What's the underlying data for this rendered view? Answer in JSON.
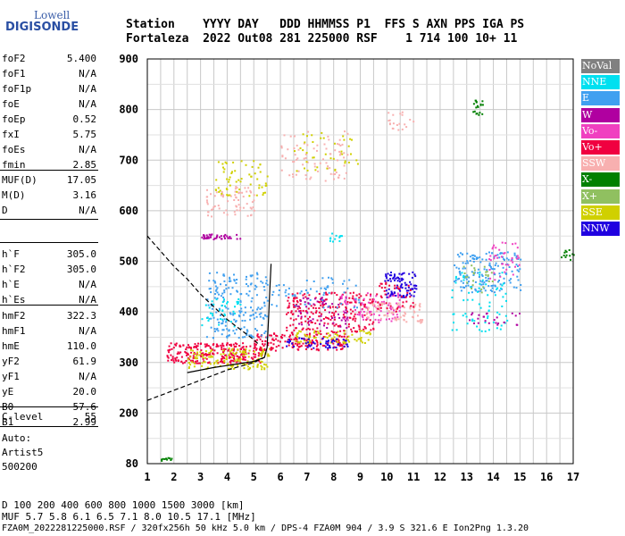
{
  "logo": {
    "top": "Lowell",
    "main": "DIGISONDE",
    "color": "#2a4fa3"
  },
  "header": {
    "row1": "Station    YYYY DAY   DDD HHMMSS P1  FFS S AXN PPS IGA PS",
    "row2": "Fortaleza  2022 Out08 281 225000 RSF    1 714 100 10+ 11"
  },
  "params_group1": [
    {
      "name": "foF2",
      "value": "5.400"
    },
    {
      "name": "foF1",
      "value": "N/A"
    },
    {
      "name": "foF1p",
      "value": "N/A"
    },
    {
      "name": "foE",
      "value": "N/A"
    },
    {
      "name": "foEp",
      "value": "0.52"
    },
    {
      "name": "fxI",
      "value": "5.75"
    },
    {
      "name": "foEs",
      "value": "N/A"
    },
    {
      "name": "fmin",
      "value": "2.85"
    }
  ],
  "params_group2": [
    {
      "name": "MUF(D)",
      "value": "17.05"
    },
    {
      "name": "M(D)",
      "value": "3.16"
    },
    {
      "name": "D",
      "value": "N/A"
    }
  ],
  "params_group3": [
    {
      "name": "h`F",
      "value": "305.0"
    },
    {
      "name": "h`F2",
      "value": "305.0"
    },
    {
      "name": "h`E",
      "value": "N/A"
    },
    {
      "name": "h`Es",
      "value": "N/A"
    }
  ],
  "params_group4": [
    {
      "name": "hmF2",
      "value": "322.3"
    },
    {
      "name": "hmF1",
      "value": "N/A"
    },
    {
      "name": "hmE",
      "value": "110.0"
    },
    {
      "name": "yF2",
      "value": "61.9"
    },
    {
      "name": "yF1",
      "value": "N/A"
    },
    {
      "name": "yE",
      "value": "20.0"
    },
    {
      "name": "B0",
      "value": "57.6"
    },
    {
      "name": "B1",
      "value": "2.99"
    }
  ],
  "params_group5": [
    {
      "name": "C-level",
      "value": "55"
    }
  ],
  "auto": {
    "line1": "Auto:",
    "line2": "Artist5",
    "line3": "500200"
  },
  "legend": [
    {
      "label": "NoVal",
      "color": "#808080"
    },
    {
      "label": "NNE",
      "color": "#00e0f0"
    },
    {
      "label": "E",
      "color": "#40a0f0"
    },
    {
      "label": "W",
      "color": "#b000a0"
    },
    {
      "label": "Vo-",
      "color": "#f040c0"
    },
    {
      "label": "Vo+",
      "color": "#f00040"
    },
    {
      "label": "SSW",
      "color": "#f8b0b0"
    },
    {
      "label": "X-",
      "color": "#008000"
    },
    {
      "label": "X+",
      "color": "#90c060"
    },
    {
      "label": "SSE",
      "color": "#d0d000"
    },
    {
      "label": "NNW",
      "color": "#2000e0"
    }
  ],
  "footer": {
    "line1": "D     100  200  400  600  800 1000 1500 3000 [km]",
    "line2": "MUF    5.7  5.8  6.1  6.5  7.1  8.0 10.5 17.1 [MHz]",
    "line3": "FZA0M_2022281225000.RSF / 320fx256h 50 kHz 5.0 km / DPS-4 FZA0M 904 / 3.9 S 321.6 E   Ion2Png 1.3.20"
  },
  "chart_data": {
    "type": "scatter",
    "xlim": [
      1,
      17
    ],
    "ylim": [
      80,
      900
    ],
    "x_ticks": [
      "1",
      "2",
      "3",
      "4",
      "5",
      "6",
      "7",
      "8",
      "9",
      "10",
      "11",
      "12",
      "13",
      "14",
      "15",
      "16",
      "17"
    ],
    "y_ticks": [
      "80",
      "200",
      "300",
      "400",
      "500",
      "600",
      "700",
      "800",
      "900"
    ],
    "y_tick_values": [
      80,
      200,
      300,
      400,
      500,
      600,
      700,
      800,
      900
    ],
    "grid": true,
    "clusters": [
      {
        "color": "#f00040",
        "x": [
          1.7,
          5.3
        ],
        "y": [
          300,
          340
        ],
        "n": 260
      },
      {
        "color": "#d0d000",
        "x": [
          2.5,
          5.6
        ],
        "y": [
          288,
          330
        ],
        "n": 140
      },
      {
        "color": "#f00040",
        "x": [
          5.0,
          8.5
        ],
        "y": [
          325,
          360
        ],
        "n": 170
      },
      {
        "color": "#d0d000",
        "x": [
          6.5,
          9.5
        ],
        "y": [
          340,
          365
        ],
        "n": 80
      },
      {
        "color": "#2000e0",
        "x": [
          6.0,
          8.5
        ],
        "y": [
          330,
          350
        ],
        "n": 50
      },
      {
        "color": "#40a0f0",
        "x": [
          3.2,
          5.5
        ],
        "y": [
          350,
          480
        ],
        "n": 190
      },
      {
        "color": "#00e0f0",
        "x": [
          3.0,
          4.5
        ],
        "y": [
          370,
          430
        ],
        "n": 40
      },
      {
        "color": "#f00040",
        "x": [
          6.2,
          9.5
        ],
        "y": [
          360,
          440
        ],
        "n": 230
      },
      {
        "color": "#b000a0",
        "x": [
          6.5,
          8.5
        ],
        "y": [
          370,
          430
        ],
        "n": 60
      },
      {
        "color": "#f040c0",
        "x": [
          8.2,
          10.5
        ],
        "y": [
          380,
          440
        ],
        "n": 90
      },
      {
        "color": "#f8b0b0",
        "x": [
          9.2,
          11.3
        ],
        "y": [
          380,
          420
        ],
        "n": 80
      },
      {
        "color": "#40a0f0",
        "x": [
          5.6,
          9.0
        ],
        "y": [
          410,
          470
        ],
        "n": 60
      },
      {
        "color": "#2000e0",
        "x": [
          9.9,
          11.1
        ],
        "y": [
          430,
          480
        ],
        "n": 90
      },
      {
        "color": "#f00040",
        "x": [
          9.5,
          11.0
        ],
        "y": [
          400,
          460
        ],
        "n": 40
      },
      {
        "color": "#40a0f0",
        "x": [
          12.5,
          15.0
        ],
        "y": [
          440,
          520
        ],
        "n": 160
      },
      {
        "color": "#00e0f0",
        "x": [
          12.3,
          14.5
        ],
        "y": [
          360,
          480
        ],
        "n": 70
      },
      {
        "color": "#f040c0",
        "x": [
          13.8,
          15.0
        ],
        "y": [
          460,
          540
        ],
        "n": 40
      },
      {
        "color": "#b000a0",
        "x": [
          13.0,
          15.0
        ],
        "y": [
          375,
          400
        ],
        "n": 25
      },
      {
        "color": "#90c060",
        "x": [
          12.8,
          14.0
        ],
        "y": [
          440,
          500
        ],
        "n": 25
      },
      {
        "color": "#b000a0",
        "x": [
          3.0,
          4.5
        ],
        "y": [
          545,
          555
        ],
        "n": 40
      },
      {
        "color": "#f8b0b0",
        "x": [
          3.2,
          5.0
        ],
        "y": [
          590,
          650
        ],
        "n": 70
      },
      {
        "color": "#d0d000",
        "x": [
          3.5,
          5.5
        ],
        "y": [
          630,
          700
        ],
        "n": 60
      },
      {
        "color": "#f8b0b0",
        "x": [
          6.0,
          8.5
        ],
        "y": [
          660,
          760
        ],
        "n": 80
      },
      {
        "color": "#d0d000",
        "x": [
          6.5,
          9.0
        ],
        "y": [
          680,
          760
        ],
        "n": 40
      },
      {
        "color": "#f8b0b0",
        "x": [
          10.0,
          11.0
        ],
        "y": [
          750,
          800
        ],
        "n": 20
      },
      {
        "color": "#008000",
        "x": [
          13.2,
          13.6
        ],
        "y": [
          790,
          820
        ],
        "n": 20
      },
      {
        "color": "#00e0f0",
        "x": [
          7.8,
          8.3
        ],
        "y": [
          540,
          560
        ],
        "n": 12
      },
      {
        "color": "#008000",
        "x": [
          16.5,
          17.0
        ],
        "y": [
          500,
          525
        ],
        "n": 12
      },
      {
        "color": "#008000",
        "x": [
          1.5,
          1.9
        ],
        "y": [
          88,
          96
        ],
        "n": 10
      }
    ],
    "traces": [
      {
        "style": "dashed",
        "x": [
          1.0,
          1.5,
          2.0,
          2.5,
          3.0,
          3.5,
          4.0,
          4.5,
          5.0,
          5.2
        ],
        "y": [
          550,
          520,
          490,
          465,
          435,
          410,
          385,
          365,
          345,
          335
        ]
      },
      {
        "style": "dashed",
        "x": [
          1.0,
          2.0,
          3.0,
          4.0,
          5.0,
          5.4
        ],
        "y": [
          225,
          245,
          265,
          285,
          300,
          310
        ]
      },
      {
        "style": "solid",
        "x": [
          2.5,
          3.5,
          4.5,
          5.0,
          5.4,
          5.5,
          5.55,
          5.6,
          5.65
        ],
        "y": [
          280,
          290,
          298,
          302,
          310,
          330,
          380,
          440,
          495
        ]
      }
    ]
  }
}
